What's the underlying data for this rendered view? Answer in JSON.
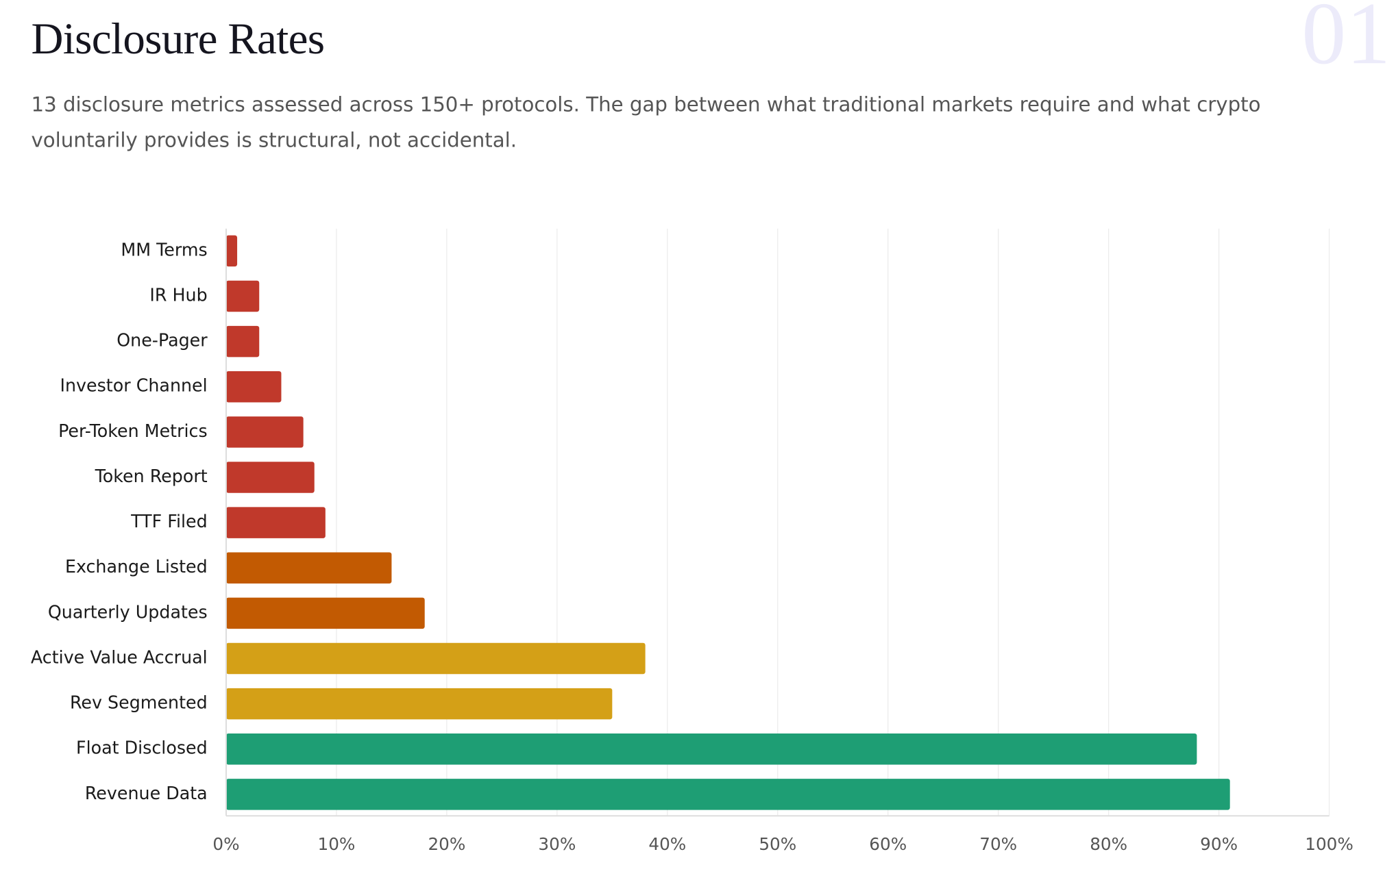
{
  "section_number": "01",
  "chart_data": {
    "type": "barh",
    "title": "Disclosure Rates",
    "subtitle": "13 disclosure metrics assessed across 150+ protocols. The gap between what traditional markets require and what crypto voluntarily provides is structural, not accidental.",
    "categories": [
      "MM Terms",
      "IR Hub",
      "One-Pager",
      "Investor Channel",
      "Per-Token Metrics",
      "Token Report",
      "TTF Filed",
      "Exchange Listed",
      "Quarterly Updates",
      "Active Value Accrual",
      "Rev Segmented",
      "Float Disclosed",
      "Revenue Data"
    ],
    "values": [
      1,
      3,
      3,
      5,
      7,
      8,
      9,
      15,
      18,
      38,
      35,
      88,
      91
    ],
    "colors": [
      "#c0392b",
      "#c0392b",
      "#c0392b",
      "#c0392b",
      "#c0392b",
      "#c0392b",
      "#c0392b",
      "#c25a02",
      "#c25a02",
      "#d4a017",
      "#d4a017",
      "#1e9e74",
      "#1e9e74"
    ],
    "xlim": [
      0,
      100
    ],
    "xticks": [
      {
        "value": 0,
        "label": "0%"
      },
      {
        "value": 10,
        "label": "10%"
      },
      {
        "value": 20,
        "label": "20%"
      },
      {
        "value": 30,
        "label": "30%"
      },
      {
        "value": 40,
        "label": "40%"
      },
      {
        "value": 50,
        "label": "50%"
      },
      {
        "value": 60,
        "label": "60%"
      },
      {
        "value": 70,
        "label": "70%"
      },
      {
        "value": 80,
        "label": "80%"
      },
      {
        "value": 90,
        "label": "90%"
      },
      {
        "value": 100,
        "label": "100%"
      }
    ],
    "grid": true
  }
}
